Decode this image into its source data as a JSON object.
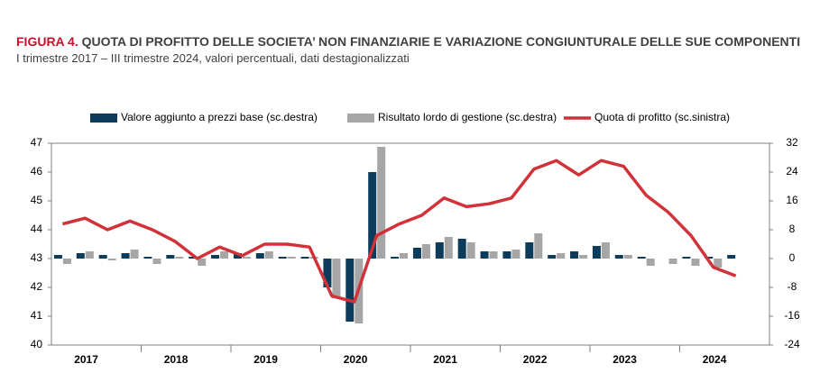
{
  "chart_data": {
    "type": "bar-line",
    "figure_label": "FIGURA 4.",
    "title": "QUOTA DI PROFITTO DELLE SOCIETA’ NON FINANZIARIE E VARIAZIONE CONGIUNTURALE DELLE SUE COMPONENTI",
    "subtitle": "I trimestre 2017 – III trimestre 2024, valori percentuali, dati destagionalizzati",
    "year_labels": [
      "2017",
      "2018",
      "2019",
      "2020",
      "2021",
      "2022",
      "2023",
      "2024"
    ],
    "categories": [
      null,
      null,
      null,
      null,
      null,
      null,
      null,
      null,
      null,
      null,
      null,
      null,
      null,
      null,
      null,
      null,
      null,
      null,
      null,
      null,
      null,
      null,
      null,
      null,
      null,
      null,
      null,
      null,
      null,
      null,
      null
    ],
    "series": [
      {
        "name": "Valore aggiunto a prezzi base (sc.destra)",
        "color": "#0d3b5c",
        "kind": "bar",
        "axis": "y2",
        "values": [
          1,
          1.5,
          1,
          1.5,
          0.5,
          1,
          0.5,
          1,
          1.5,
          1.5,
          0.5,
          0.5,
          -8,
          -17.5,
          24,
          0.5,
          3,
          4.5,
          5.5,
          2,
          2,
          4.5,
          1,
          2,
          3.5,
          1,
          0.5,
          0,
          0.5,
          0.5,
          1
        ]
      },
      {
        "name": "Risultato lordo di gestione (sc.destra)",
        "color": "#a6a6a6",
        "kind": "bar",
        "axis": "y2",
        "values": [
          -1.5,
          2,
          -0.5,
          2.5,
          -1.5,
          0.5,
          -2,
          2,
          0.5,
          2,
          0.5,
          0.5,
          -11,
          -18,
          31,
          1.5,
          4,
          6,
          4.5,
          2,
          2.5,
          7,
          1.5,
          1,
          4.5,
          1,
          -2,
          -1.5,
          -2,
          -2.5,
          0
        ]
      },
      {
        "name": "Quota di profitto (sc.sinistra)",
        "color": "#d1323a",
        "kind": "line",
        "axis": "y",
        "values": [
          44.2,
          44.4,
          44.0,
          44.3,
          44.0,
          43.6,
          43.0,
          43.4,
          43.1,
          43.5,
          43.5,
          43.4,
          41.7,
          41.5,
          43.8,
          44.2,
          44.5,
          45.1,
          44.8,
          44.9,
          45.1,
          46.1,
          46.4,
          45.9,
          46.4,
          46.2,
          45.2,
          44.6,
          43.8,
          42.7,
          42.4
        ]
      }
    ],
    "ylim": [
      40,
      47
    ],
    "yticks": [
      40,
      41,
      42,
      43,
      44,
      45,
      46,
      47
    ],
    "y2lim": [
      -24,
      32
    ],
    "y2ticks": [
      -24,
      -16,
      -8,
      0,
      8,
      16,
      24,
      32
    ]
  }
}
